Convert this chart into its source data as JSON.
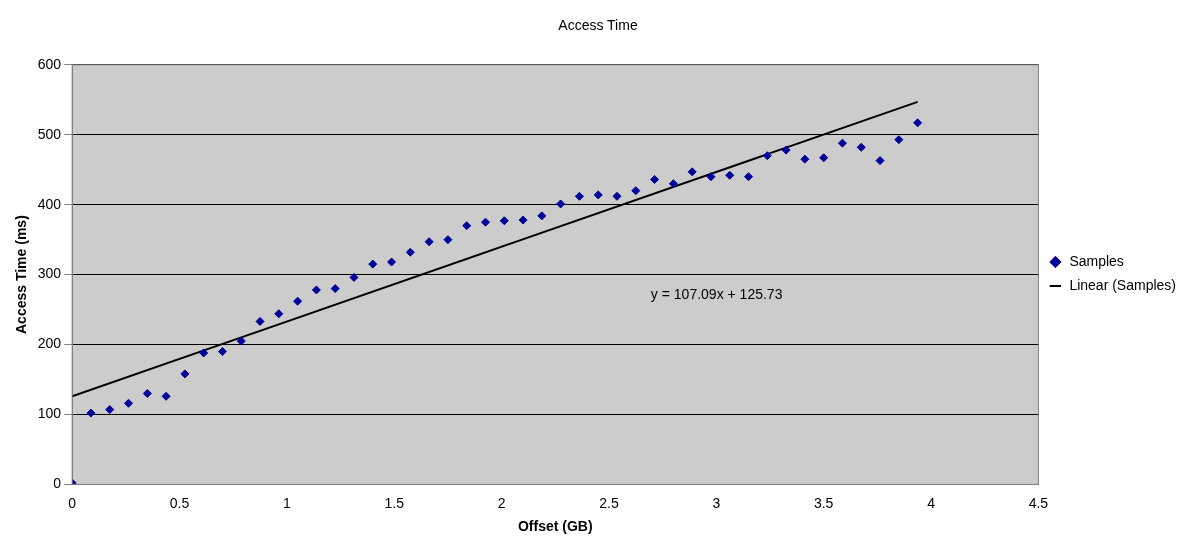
{
  "chart_data": {
    "type": "scatter",
    "title": "Access Time",
    "xlabel": "Offset (GB)",
    "ylabel": "Access Time (ms)",
    "xlim": [
      0,
      4.5
    ],
    "xticks": [
      0,
      0.5,
      1,
      1.5,
      2,
      2.5,
      3,
      3.5,
      4,
      4.5
    ],
    "ylim": [
      0,
      600
    ],
    "yticks": [
      0,
      100,
      200,
      300,
      400,
      500,
      600
    ],
    "grid": "y",
    "legend": "right",
    "marker": "diamond",
    "annotations": [
      "y = 107.09x + 125.73"
    ],
    "series": [
      {
        "name": "Samples",
        "color": "#000099",
        "x": [
          0,
          0.0875,
          0.175,
          0.2625,
          0.35,
          0.4375,
          0.525,
          0.6125,
          0.7,
          0.7875,
          0.875,
          0.9625,
          1.05,
          1.1375,
          1.225,
          1.3125,
          1.4,
          1.4875,
          1.575,
          1.6625,
          1.75,
          1.8375,
          1.925,
          2.0125,
          2.1,
          2.1875,
          2.275,
          2.3625,
          2.45,
          2.5375,
          2.625,
          2.7125,
          2.8,
          2.8875,
          2.975,
          3.0625,
          3.15,
          3.2375,
          3.325,
          3.4125,
          3.5,
          3.5875,
          3.675,
          3.7625,
          3.85,
          3.9375
        ],
        "values": [
          2,
          102,
          107,
          116,
          130,
          126,
          158,
          188,
          190,
          205,
          233,
          244,
          262,
          278,
          280,
          296,
          315,
          318,
          332,
          347,
          350,
          370,
          375,
          377,
          378,
          384,
          401,
          412,
          414,
          412,
          420,
          436,
          430,
          447,
          440,
          442,
          440,
          470,
          478,
          465,
          467,
          488,
          482,
          463,
          493,
          517
        ]
      },
      {
        "name": "Linear (Samples)",
        "type": "line",
        "color": "#000000",
        "x": [
          0,
          3.9375
        ],
        "values": [
          126,
          547
        ],
        "marker": "none",
        "line_style": "solid"
      }
    ]
  }
}
